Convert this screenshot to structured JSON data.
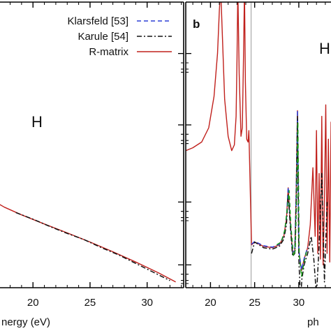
{
  "colors": {
    "axis": "#000000",
    "klarsfeld": "#2b3fd6",
    "karule": "#111111",
    "rmatrix": "#c0201c",
    "extra": "#1a9a1a",
    "threshold_line": "#b8b8b8"
  },
  "chart_data": [
    {
      "type": "line",
      "panel": "a",
      "xlabel": "nergy (eV)",
      "element": "H",
      "xlim": [
        16.5,
        33.2
      ],
      "ylim": [
        0,
        1
      ],
      "x_ticks": [
        20,
        25,
        30
      ],
      "x_tick_labels": [
        "20",
        "25",
        "30"
      ],
      "legend": {
        "placement": "top-right",
        "entries": [
          {
            "label": "Klarsfeld [53]",
            "style": "dashed",
            "color_key": "klarsfeld"
          },
          {
            "label": "Karule [54]",
            "style": "dashdot",
            "color_key": "karule"
          },
          {
            "label": "R-matrix",
            "style": "solid",
            "color_key": "rmatrix"
          }
        ]
      },
      "series": [
        {
          "name": "R-matrix",
          "color_key": "rmatrix",
          "style": "solid",
          "x": [
            16.5,
            17.5,
            19,
            21,
            23,
            25,
            27,
            29,
            31,
            32.5
          ],
          "y": [
            0.305,
            0.282,
            0.255,
            0.223,
            0.192,
            0.16,
            0.126,
            0.09,
            0.052,
            0.02
          ]
        },
        {
          "name": "Karule [54]",
          "color_key": "karule",
          "style": "dashdot",
          "x": [
            18.5,
            20,
            21.5,
            23,
            24.5,
            26,
            27.5,
            29,
            30.5,
            32
          ],
          "y": [
            0.263,
            0.24,
            0.214,
            0.19,
            0.168,
            0.14,
            0.115,
            0.085,
            0.055,
            0.025
          ]
        }
      ]
    },
    {
      "type": "line",
      "panel": "b",
      "panel_label": "b",
      "xlabel": "ph",
      "element": "H",
      "xlim": [
        17.2,
        35.7
      ],
      "ylim": [
        0,
        1
      ],
      "x_ticks": [
        20,
        25,
        30
      ],
      "x_tick_labels": [
        "20",
        "25",
        "30"
      ],
      "threshold_x": 24.6,
      "series": [
        {
          "name": "R-matrix",
          "color_key": "rmatrix",
          "style": "solid",
          "x": [
            17.2,
            18.0,
            19.0,
            19.8,
            20.4,
            20.8,
            21.0,
            21.15,
            21.3,
            21.6,
            22.0,
            22.4,
            22.7,
            22.9,
            23.0,
            23.1,
            23.25,
            23.45,
            23.6,
            23.75,
            23.85,
            23.95,
            24.1,
            24.25,
            24.35,
            24.65,
            25.0,
            26.0,
            27.0,
            27.8,
            28.3,
            28.6,
            28.8,
            29.0,
            29.3,
            29.55,
            29.7,
            29.85,
            30.0,
            30.3,
            30.6,
            31.0,
            31.3,
            31.6,
            31.85,
            32.0,
            32.15,
            32.3,
            32.45,
            32.6,
            32.75,
            32.9,
            33.05,
            33.2,
            33.35,
            33.5,
            33.65,
            33.8,
            34.0,
            34.2
          ],
          "y": [
            0.48,
            0.49,
            0.51,
            0.56,
            0.67,
            0.82,
            0.97,
            1.05,
            0.92,
            0.66,
            0.53,
            0.48,
            0.5,
            0.6,
            0.8,
            1.05,
            0.75,
            0.53,
            0.56,
            0.82,
            1.05,
            0.72,
            0.52,
            0.51,
            0.55,
            0.15,
            0.16,
            0.145,
            0.14,
            0.15,
            0.18,
            0.24,
            0.35,
            0.24,
            0.12,
            0.13,
            0.32,
            0.62,
            0.13,
            0.06,
            0.1,
            0.14,
            0.22,
            0.42,
            0.18,
            0.55,
            0.12,
            0.4,
            0.1,
            0.6,
            0.08,
            0.3,
            0.64,
            0.12,
            0.52,
            0.09,
            0.58,
            0.2,
            0.45,
            0.3
          ]
        },
        {
          "name": "Klarsfeld [53]",
          "color_key": "klarsfeld",
          "style": "dashed",
          "x": [
            24.65,
            25.0,
            26.0,
            27.0,
            27.8,
            28.3,
            28.6,
            28.8,
            29.0,
            29.3,
            29.55,
            29.7,
            29.85,
            30.0,
            30.3,
            30.6,
            31.0
          ],
          "y": [
            0.152,
            0.162,
            0.147,
            0.142,
            0.152,
            0.182,
            0.242,
            0.352,
            0.242,
            0.122,
            0.132,
            0.322,
            0.622,
            0.132,
            0.062,
            0.102,
            0.142
          ]
        },
        {
          "name": "Karule [54]",
          "color_key": "karule",
          "style": "dashdot",
          "x": [
            24.65,
            25.0,
            26.0,
            27.0,
            27.8,
            28.3,
            28.6,
            28.8,
            29.0,
            29.3,
            29.55,
            29.7,
            29.85,
            30.0,
            30.2,
            30.35,
            30.6,
            31.0,
            31.4,
            31.7,
            32.0,
            32.3,
            32.6,
            32.9,
            33.2
          ],
          "y": [
            0.12,
            0.16,
            0.14,
            0.135,
            0.145,
            0.17,
            0.22,
            0.33,
            0.23,
            0.11,
            0.12,
            0.3,
            0.6,
            0.1,
            -0.04,
            0.03,
            0.08,
            0.12,
            0.18,
            0.1,
            -0.03,
            0.15,
            0.4,
            0.02,
            0.3
          ]
        },
        {
          "name": "green",
          "color_key": "extra",
          "style": "dashed",
          "x": [
            27.5,
            28.0,
            28.4,
            28.7,
            28.9,
            29.1,
            29.4,
            29.6,
            29.75,
            29.9,
            30.05,
            30.3,
            30.6,
            30.9
          ],
          "y": [
            0.15,
            0.16,
            0.2,
            0.28,
            0.34,
            0.22,
            0.11,
            0.13,
            0.3,
            0.58,
            0.12,
            0.04,
            0.09,
            0.13
          ]
        }
      ]
    }
  ]
}
